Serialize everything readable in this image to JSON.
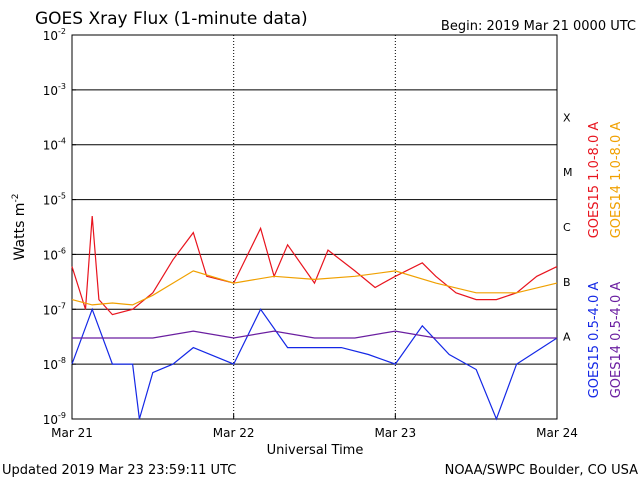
{
  "header": {
    "title": "GOES Xray Flux (1-minute data)",
    "begin": "Begin:  2019 Mar 21 0000 UTC"
  },
  "footer": {
    "updated": "Updated 2019 Mar 23 23:59:11 UTC",
    "credit": "NOAA/SWPC Boulder, CO USA"
  },
  "colors": {
    "goes15_long": "#e8141e",
    "goes14_long": "#f0a000",
    "goes15_short": "#1428e6",
    "goes14_short": "#6a1ea0",
    "grid": "#000000"
  },
  "chart_data": {
    "type": "line",
    "title": "GOES Xray Flux (1-minute data)",
    "xlabel": "Universal Time",
    "ylabel": "Watts m",
    "ylabel_superscript": "-2",
    "y_scale": "log",
    "ylim": [
      1e-09,
      0.01
    ],
    "y_ticks": [
      {
        "mantissa": "10",
        "exp": "-2"
      },
      {
        "mantissa": "10",
        "exp": "-3"
      },
      {
        "mantissa": "10",
        "exp": "-4"
      },
      {
        "mantissa": "10",
        "exp": "-5"
      },
      {
        "mantissa": "10",
        "exp": "-6"
      },
      {
        "mantissa": "10",
        "exp": "-7"
      },
      {
        "mantissa": "10",
        "exp": "-8"
      },
      {
        "mantissa": "10",
        "exp": "-9"
      }
    ],
    "x_ticks": [
      "Mar 21",
      "Mar 22",
      "Mar 23",
      "Mar 24"
    ],
    "x_range": [
      "2019-03-21",
      "2019-03-24"
    ],
    "flare_classes": [
      {
        "label": "X",
        "flux": 0.0001
      },
      {
        "label": "M",
        "flux": 1e-05
      },
      {
        "label": "C",
        "flux": 1e-06
      },
      {
        "label": "B",
        "flux": 1e-07
      },
      {
        "label": "A",
        "flux": 1e-08
      }
    ],
    "grid": true,
    "legend_placement": "right",
    "series": [
      {
        "name": "GOES15 1.0-8.0 A",
        "color": "#e8141e",
        "x": [
          "2019-03-21 00:00",
          "2019-03-21 02:00",
          "2019-03-21 03:00",
          "2019-03-21 04:00",
          "2019-03-21 06:00",
          "2019-03-21 09:00",
          "2019-03-21 12:00",
          "2019-03-21 15:00",
          "2019-03-21 18:00",
          "2019-03-21 20:00",
          "2019-03-22 00:00",
          "2019-03-22 04:00",
          "2019-03-22 06:00",
          "2019-03-22 08:00",
          "2019-03-22 12:00",
          "2019-03-22 14:00",
          "2019-03-22 18:00",
          "2019-03-22 21:00",
          "2019-03-23 00:00",
          "2019-03-23 04:00",
          "2019-03-23 06:00",
          "2019-03-23 09:00",
          "2019-03-23 12:00",
          "2019-03-23 15:00",
          "2019-03-23 18:00",
          "2019-03-23 21:00",
          "2019-03-24 00:00"
        ],
        "values": [
          6e-07,
          1e-07,
          5e-06,
          1.5e-07,
          8e-08,
          1e-07,
          2e-07,
          8e-07,
          2.5e-06,
          4e-07,
          3e-07,
          3e-06,
          4e-07,
          1.5e-06,
          3e-07,
          1.2e-06,
          5e-07,
          2.5e-07,
          4e-07,
          7e-07,
          4e-07,
          2e-07,
          1.5e-07,
          1.5e-07,
          2e-07,
          4e-07,
          6e-07
        ]
      },
      {
        "name": "GOES14 1.0-8.0 A",
        "color": "#f0a000",
        "x": [
          "2019-03-21 00:00",
          "2019-03-21 03:00",
          "2019-03-21 06:00",
          "2019-03-21 09:00",
          "2019-03-21 12:00",
          "2019-03-21 15:00",
          "2019-03-21 18:00",
          "2019-03-22 00:00",
          "2019-03-22 06:00",
          "2019-03-22 12:00",
          "2019-03-22 18:00",
          "2019-03-23 00:00",
          "2019-03-23 06:00",
          "2019-03-23 12:00",
          "2019-03-23 18:00",
          "2019-03-24 00:00"
        ],
        "values": [
          1.5e-07,
          1.2e-07,
          1.3e-07,
          1.2e-07,
          1.8e-07,
          3e-07,
          5e-07,
          3e-07,
          4e-07,
          3.5e-07,
          4e-07,
          5e-07,
          3e-07,
          2e-07,
          2e-07,
          3e-07
        ]
      },
      {
        "name": "GOES15 0.5-4.0 A",
        "color": "#1428e6",
        "x": [
          "2019-03-21 00:00",
          "2019-03-21 03:00",
          "2019-03-21 06:00",
          "2019-03-21 09:00",
          "2019-03-21 10:00",
          "2019-03-21 12:00",
          "2019-03-21 15:00",
          "2019-03-21 18:00",
          "2019-03-22 00:00",
          "2019-03-22 04:00",
          "2019-03-22 08:00",
          "2019-03-22 12:00",
          "2019-03-22 16:00",
          "2019-03-22 20:00",
          "2019-03-23 00:00",
          "2019-03-23 04:00",
          "2019-03-23 08:00",
          "2019-03-23 12:00",
          "2019-03-23 15:00",
          "2019-03-23 18:00",
          "2019-03-24 00:00"
        ],
        "values": [
          1e-08,
          1e-07,
          1e-08,
          1e-08,
          1e-09,
          7e-09,
          1e-08,
          2e-08,
          1e-08,
          1e-07,
          2e-08,
          2e-08,
          2e-08,
          1.5e-08,
          1e-08,
          5e-08,
          1.5e-08,
          8e-09,
          1e-09,
          1e-08,
          3e-08
        ]
      },
      {
        "name": "GOES14 0.5-4.0 A",
        "color": "#6a1ea0",
        "x": [
          "2019-03-21 00:00",
          "2019-03-21 06:00",
          "2019-03-21 12:00",
          "2019-03-21 18:00",
          "2019-03-22 00:00",
          "2019-03-22 06:00",
          "2019-03-22 12:00",
          "2019-03-22 18:00",
          "2019-03-23 00:00",
          "2019-03-23 06:00",
          "2019-03-23 12:00",
          "2019-03-23 18:00",
          "2019-03-24 00:00"
        ],
        "values": [
          3e-08,
          3e-08,
          3e-08,
          4e-08,
          3e-08,
          4e-08,
          3e-08,
          3e-08,
          4e-08,
          3e-08,
          3e-08,
          3e-08,
          3e-08
        ]
      }
    ]
  }
}
